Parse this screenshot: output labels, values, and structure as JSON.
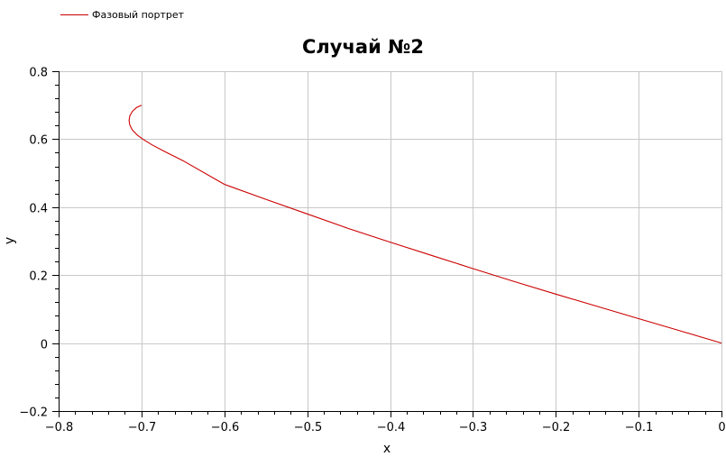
{
  "legend": {
    "label": "Фазовый портрет",
    "color": "#cc0000"
  },
  "chart_data": {
    "type": "line",
    "title": "Случай №2",
    "xlabel": "x",
    "ylabel": "y",
    "xlim": [
      -0.8,
      0
    ],
    "ylim": [
      -0.2,
      0.8
    ],
    "grid": true,
    "legend_position": "top-left",
    "x_ticks": [
      "−0.8",
      "−0.7",
      "−0.6",
      "−0.5",
      "−0.4",
      "−0.3",
      "−0.2",
      "−0.1",
      "0"
    ],
    "y_ticks": [
      "−0.2",
      "0",
      "0.2",
      "0.4",
      "0.6",
      "0.8"
    ],
    "series": [
      {
        "name": "Фазовый портрет",
        "color": "#cc0000",
        "x": [
          -0.7,
          -0.706,
          -0.711,
          -0.714,
          -0.715,
          -0.714,
          -0.711,
          -0.705,
          -0.697,
          -0.687,
          -0.673,
          -0.65,
          -0.6,
          -0.55,
          -0.5,
          -0.45,
          -0.4,
          -0.35,
          -0.3,
          -0.25,
          -0.2,
          -0.15,
          -0.1,
          -0.05,
          0
        ],
        "y": [
          0.7,
          0.693,
          0.682,
          0.669,
          0.655,
          0.641,
          0.627,
          0.612,
          0.598,
          0.583,
          0.565,
          0.537,
          0.467,
          0.423,
          0.38,
          0.337,
          0.297,
          0.258,
          0.219,
          0.181,
          0.144,
          0.108,
          0.072,
          0.036,
          0
        ]
      }
    ]
  }
}
